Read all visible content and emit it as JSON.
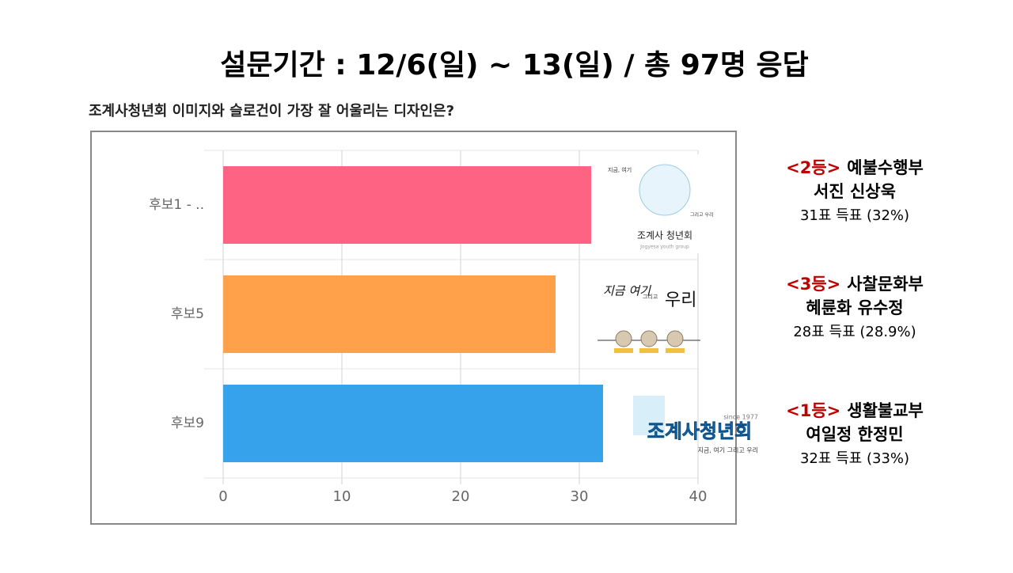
{
  "title": "설문기간 : 12/6(일) ~ 13(일) / 총 97명 응답",
  "chart_data": {
    "type": "bar",
    "orientation": "horizontal",
    "title": "조계사청년회 이미지와 슬로건이 가장 잘 어울리는 디자인은?",
    "categories": [
      "후보1 - ..",
      "후보5",
      "후보9"
    ],
    "values": [
      31,
      28,
      32
    ],
    "colors": [
      "#ff6384",
      "#ffa04a",
      "#36a2eb"
    ],
    "xlim": [
      0,
      40
    ],
    "xticks": [
      0,
      10,
      20,
      30,
      40
    ],
    "grid": true
  },
  "results": [
    {
      "rank": "<2등>",
      "dept": "예불수행부",
      "names": "서진 신상욱",
      "votes": "31표 득표 (32%)"
    },
    {
      "rank": "<3등>",
      "dept": "사찰문화부",
      "names": "혜륜화 유수정",
      "votes": "28표 득표 (28.9%)"
    },
    {
      "rank": "<1등>",
      "dept": "생활불교부",
      "names": "여일정 한정민",
      "votes": "32표 득표 (33%)"
    }
  ],
  "logos": [
    {
      "texts": [
        "지금, 여기",
        "그리고 우리",
        "조계사 청년회",
        "Jogyesa youth group"
      ]
    },
    {
      "texts": [
        "지금 여기",
        "그리고",
        "우리"
      ]
    },
    {
      "texts": [
        "since 1977",
        "조계사청년회",
        "지금, 여기 그리고 우리"
      ]
    }
  ]
}
